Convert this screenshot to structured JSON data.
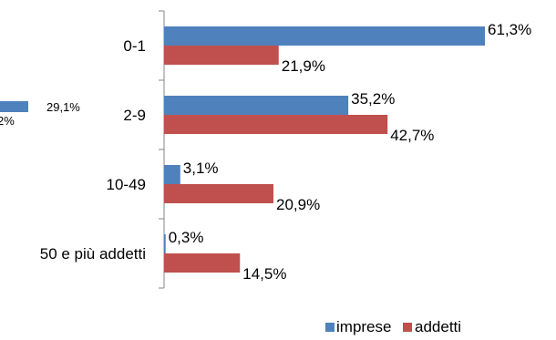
{
  "colors": {
    "imprese": "#4f81bd",
    "addetti": "#c0504d",
    "axis": "#868686"
  },
  "chart_data": {
    "type": "bar",
    "orientation": "horizontal",
    "categories": [
      "0-1",
      "2-9",
      "10-49",
      "50 e più addetti"
    ],
    "series": [
      {
        "name": "imprese",
        "values": [
          61.3,
          35.2,
          3.1,
          0.3
        ],
        "labels": [
          "61,3%",
          "35,2%",
          "3,1%",
          "0,3%"
        ]
      },
      {
        "name": "addetti",
        "values": [
          21.9,
          42.7,
          20.9,
          14.5
        ],
        "labels": [
          "21,9%",
          "42,7%",
          "20,9%",
          "14,5%"
        ]
      }
    ],
    "xlim": [
      0,
      65
    ],
    "legend_position": "bottom",
    "grid": false
  },
  "partial_chart": {
    "visible_labels": [
      "29,1%",
      "2%"
    ]
  }
}
